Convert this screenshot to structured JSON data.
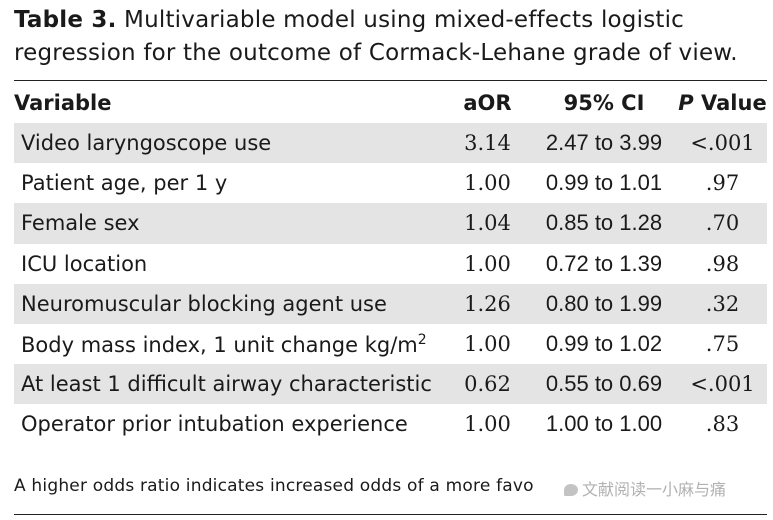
{
  "caption": {
    "label": "Table 3.",
    "text": " Multivariable model using mixed-effects logistic regression for the outcome of Cormack-Lehane grade of view."
  },
  "table": {
    "headers": {
      "variable": "Variable",
      "aor": "aOR",
      "ci": "95% CI",
      "p_prefix": "P",
      "p_suffix": " Value"
    },
    "rows": [
      {
        "variable": "Video laryngoscope use",
        "aor": "3.14",
        "ci": "2.47 to 3.99",
        "p": "<.001"
      },
      {
        "variable": "Patient age, per 1 y",
        "aor": "1.00",
        "ci": "0.99 to 1.01",
        "p": ".97"
      },
      {
        "variable": "Female sex",
        "aor": "1.04",
        "ci": "0.85 to 1.28",
        "p": ".70"
      },
      {
        "variable": "ICU location",
        "aor": "1.00",
        "ci": "0.72 to 1.39",
        "p": ".98"
      },
      {
        "variable": "Neuromuscular blocking agent use",
        "aor": "1.26",
        "ci": "0.80 to 1.99",
        "p": ".32"
      },
      {
        "variable": "Body mass index, 1 unit change kg/m",
        "variable_sup": "2",
        "aor": "1.00",
        "ci": "0.99 to 1.02",
        "p": ".75"
      },
      {
        "variable": "At least 1 difficult airway characteristic",
        "aor": "0.62",
        "ci": "0.55 to 0.69",
        "p": "<.001"
      },
      {
        "variable": "Operator prior intubation experience",
        "aor": "1.00",
        "ci": "1.00 to 1.00",
        "p": ".83"
      }
    ]
  },
  "footnote": "A higher odds ratio indicates increased odds of a more favo",
  "watermark": "文献阅读一小麻与痛"
}
